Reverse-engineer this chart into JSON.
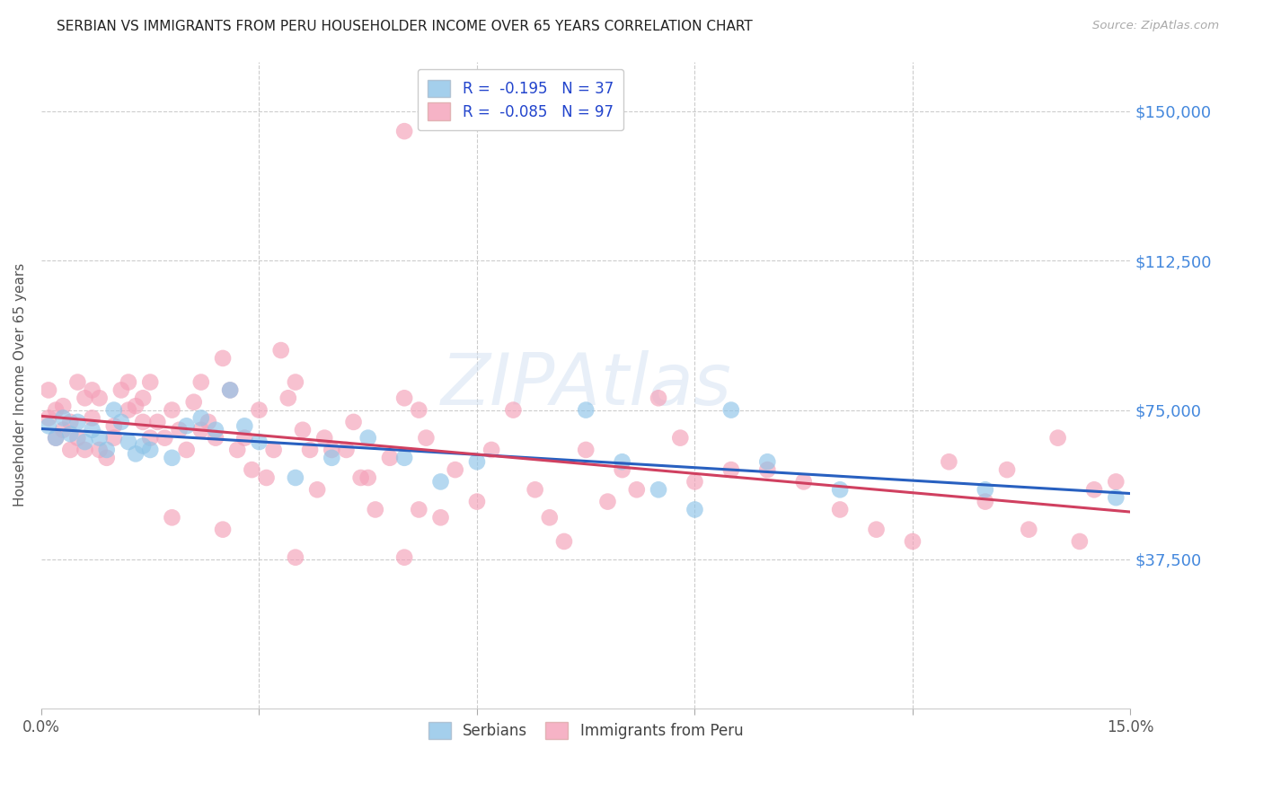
{
  "title": "SERBIAN VS IMMIGRANTS FROM PERU HOUSEHOLDER INCOME OVER 65 YEARS CORRELATION CHART",
  "source": "Source: ZipAtlas.com",
  "ylabel": "Householder Income Over 65 years",
  "ytick_labels": [
    "$150,000",
    "$112,500",
    "$75,000",
    "$37,500"
  ],
  "ytick_values": [
    150000,
    112500,
    75000,
    37500
  ],
  "ymin": 0,
  "ymax": 162500,
  "xmin": 0.0,
  "xmax": 0.15,
  "legend_r_serbian": "R =  -0.195   N = 37",
  "legend_r_peru": "R =  -0.085   N = 97",
  "serbian_color": "#8ec4e8",
  "peru_color": "#f4a0b8",
  "serbian_line_color": "#2860c0",
  "peru_line_color": "#d04060",
  "watermark": "ZIPAtlas",
  "serbian_data_x": [
    0.001,
    0.002,
    0.003,
    0.004,
    0.005,
    0.006,
    0.007,
    0.008,
    0.009,
    0.01,
    0.011,
    0.012,
    0.013,
    0.014,
    0.015,
    0.018,
    0.02,
    0.022,
    0.024,
    0.026,
    0.028,
    0.03,
    0.035,
    0.04,
    0.045,
    0.05,
    0.055,
    0.06,
    0.075,
    0.08,
    0.085,
    0.09,
    0.095,
    0.1,
    0.11,
    0.13,
    0.148
  ],
  "serbian_data_y": [
    71000,
    68000,
    73000,
    69000,
    72000,
    67000,
    70000,
    68000,
    65000,
    75000,
    72000,
    67000,
    64000,
    66000,
    65000,
    63000,
    71000,
    73000,
    70000,
    80000,
    71000,
    67000,
    58000,
    63000,
    68000,
    63000,
    57000,
    62000,
    75000,
    62000,
    55000,
    50000,
    75000,
    62000,
    55000,
    55000,
    53000
  ],
  "peru_data_x": [
    0.001,
    0.001,
    0.002,
    0.002,
    0.003,
    0.003,
    0.004,
    0.004,
    0.005,
    0.005,
    0.006,
    0.006,
    0.007,
    0.007,
    0.008,
    0.008,
    0.009,
    0.01,
    0.01,
    0.011,
    0.012,
    0.012,
    0.013,
    0.014,
    0.014,
    0.015,
    0.015,
    0.016,
    0.017,
    0.018,
    0.019,
    0.02,
    0.021,
    0.022,
    0.022,
    0.023,
    0.024,
    0.025,
    0.026,
    0.027,
    0.028,
    0.029,
    0.03,
    0.031,
    0.032,
    0.033,
    0.034,
    0.035,
    0.036,
    0.037,
    0.038,
    0.039,
    0.04,
    0.042,
    0.043,
    0.044,
    0.045,
    0.046,
    0.048,
    0.05,
    0.05,
    0.052,
    0.053,
    0.055,
    0.057,
    0.06,
    0.062,
    0.065,
    0.068,
    0.07,
    0.072,
    0.075,
    0.078,
    0.08,
    0.082,
    0.085,
    0.088,
    0.09,
    0.095,
    0.1,
    0.105,
    0.11,
    0.115,
    0.12,
    0.125,
    0.13,
    0.133,
    0.136,
    0.14,
    0.143,
    0.145,
    0.148,
    0.05,
    0.052,
    0.035,
    0.025,
    0.018
  ],
  "peru_data_y": [
    80000,
    73000,
    75000,
    68000,
    76000,
    70000,
    72000,
    65000,
    82000,
    68000,
    78000,
    65000,
    73000,
    80000,
    78000,
    65000,
    63000,
    71000,
    68000,
    80000,
    75000,
    82000,
    76000,
    78000,
    72000,
    82000,
    68000,
    72000,
    68000,
    75000,
    70000,
    65000,
    77000,
    70000,
    82000,
    72000,
    68000,
    88000,
    80000,
    65000,
    68000,
    60000,
    75000,
    58000,
    65000,
    90000,
    78000,
    82000,
    70000,
    65000,
    55000,
    68000,
    65000,
    65000,
    72000,
    58000,
    58000,
    50000,
    63000,
    78000,
    145000,
    75000,
    68000,
    48000,
    60000,
    52000,
    65000,
    75000,
    55000,
    48000,
    42000,
    65000,
    52000,
    60000,
    55000,
    78000,
    68000,
    57000,
    60000,
    60000,
    57000,
    50000,
    45000,
    42000,
    62000,
    52000,
    60000,
    45000,
    68000,
    42000,
    55000,
    57000,
    38000,
    50000,
    38000,
    45000,
    48000
  ]
}
